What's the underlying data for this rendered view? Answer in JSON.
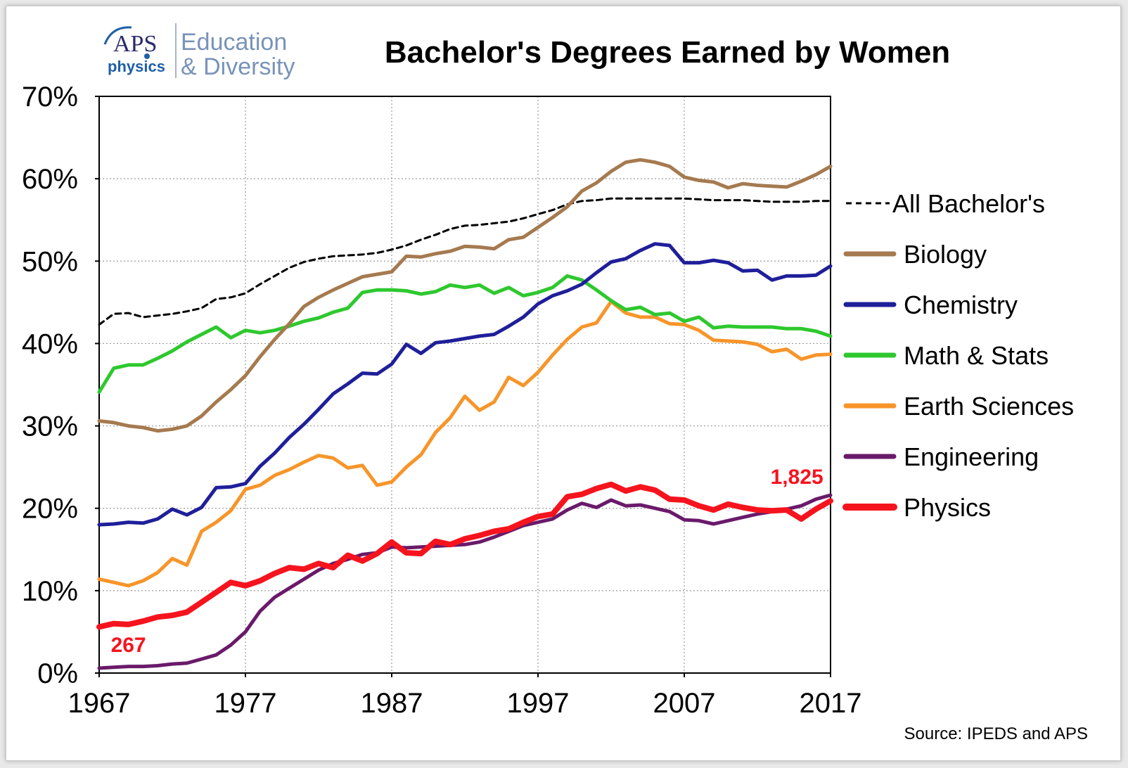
{
  "logo": {
    "aps": "APS",
    "physics": "physics",
    "line1": "Education",
    "line2": "& Diversity"
  },
  "source": "Source: IPEDS and APS",
  "chart_data": {
    "type": "line",
    "title": "Bachelor's Degrees Earned by Women",
    "xlabel": "",
    "ylabel": "",
    "xlim": [
      1967,
      2017
    ],
    "ylim": [
      0,
      70
    ],
    "x_ticks": [
      1967,
      1977,
      1987,
      1997,
      2007,
      2017
    ],
    "x_tick_labels": [
      "1967",
      "1977",
      "1987",
      "1997",
      "2007",
      "2017"
    ],
    "y_ticks": [
      0,
      10,
      20,
      30,
      40,
      50,
      60,
      70
    ],
    "y_tick_labels": [
      "0%",
      "10%",
      "20%",
      "30%",
      "40%",
      "50%",
      "60%",
      "70%"
    ],
    "grid": true,
    "legend_position": "right",
    "x": [
      1967,
      1968,
      1969,
      1970,
      1971,
      1972,
      1973,
      1974,
      1975,
      1976,
      1977,
      1978,
      1979,
      1980,
      1981,
      1982,
      1983,
      1984,
      1985,
      1986,
      1987,
      1988,
      1989,
      1990,
      1991,
      1992,
      1993,
      1994,
      1995,
      1996,
      1997,
      1998,
      1999,
      2000,
      2001,
      2002,
      2003,
      2004,
      2005,
      2006,
      2007,
      2008,
      2009,
      2010,
      2011,
      2012,
      2013,
      2014,
      2015,
      2016,
      2017
    ],
    "series": [
      {
        "name": "All Bachelor's",
        "color": "#000000",
        "dashed": true,
        "values": [
          42.3,
          43.6,
          43.7,
          43.2,
          43.4,
          43.6,
          43.9,
          44.3,
          45.4,
          45.6,
          46.1,
          47.2,
          48.2,
          49.2,
          49.9,
          50.3,
          50.6,
          50.7,
          50.8,
          51.0,
          51.4,
          51.9,
          52.6,
          53.2,
          53.9,
          54.3,
          54.4,
          54.6,
          54.8,
          55.2,
          55.7,
          56.2,
          56.9,
          57.3,
          57.4,
          57.6,
          57.6,
          57.6,
          57.6,
          57.6,
          57.6,
          57.5,
          57.4,
          57.4,
          57.4,
          57.3,
          57.2,
          57.2,
          57.2,
          57.3,
          57.3
        ]
      },
      {
        "name": "Biology",
        "color": "#a57a4f",
        "dashed": false,
        "values": [
          30.6,
          30.4,
          30.0,
          29.8,
          29.4,
          29.6,
          30.0,
          31.2,
          32.9,
          34.4,
          36.1,
          38.4,
          40.5,
          42.4,
          44.5,
          45.6,
          46.5,
          47.3,
          48.1,
          48.4,
          48.7,
          50.6,
          50.5,
          50.9,
          51.2,
          51.8,
          51.7,
          51.5,
          52.6,
          52.9,
          54.1,
          55.3,
          56.6,
          58.5,
          59.5,
          60.9,
          62.0,
          62.3,
          62.0,
          61.5,
          60.2,
          59.8,
          59.6,
          58.9,
          59.4,
          59.2,
          59.1,
          59.0,
          59.7,
          60.5,
          61.5
        ]
      },
      {
        "name": "Chemistry",
        "color": "#1f1f9a",
        "dashed": false,
        "values": [
          18.0,
          18.1,
          18.3,
          18.2,
          18.7,
          19.9,
          19.2,
          20.1,
          22.5,
          22.6,
          23.0,
          25.1,
          26.7,
          28.6,
          30.2,
          32.0,
          33.9,
          35.1,
          36.4,
          36.3,
          37.5,
          39.9,
          38.8,
          40.1,
          40.3,
          40.6,
          40.9,
          41.1,
          42.1,
          43.2,
          44.8,
          45.8,
          46.4,
          47.2,
          48.6,
          49.9,
          50.3,
          51.3,
          52.1,
          51.9,
          49.8,
          49.8,
          50.1,
          49.8,
          48.8,
          48.9,
          47.7,
          48.2,
          48.2,
          48.3,
          49.4
        ]
      },
      {
        "name": "Math & Stats",
        "color": "#2ec82e",
        "dashed": false,
        "values": [
          34.1,
          37.0,
          37.4,
          37.4,
          38.2,
          39.1,
          40.2,
          41.1,
          42.0,
          40.7,
          41.6,
          41.3,
          41.6,
          42.1,
          42.7,
          43.1,
          43.8,
          44.3,
          46.2,
          46.5,
          46.5,
          46.4,
          46.0,
          46.3,
          47.1,
          46.8,
          47.1,
          46.1,
          46.8,
          45.8,
          46.2,
          46.8,
          48.2,
          47.7,
          46.5,
          45.2,
          44.1,
          44.4,
          43.5,
          43.7,
          42.7,
          43.2,
          41.9,
          42.1,
          42.0,
          42.0,
          42.0,
          41.8,
          41.8,
          41.5,
          40.9
        ]
      },
      {
        "name": "Earth Sciences",
        "color": "#f7952a",
        "dashed": false,
        "values": [
          11.4,
          11.0,
          10.6,
          11.2,
          12.2,
          13.9,
          13.1,
          17.2,
          18.3,
          19.7,
          22.3,
          22.8,
          24.0,
          24.7,
          25.6,
          26.4,
          26.1,
          24.9,
          25.2,
          22.8,
          23.2,
          25.0,
          26.5,
          29.2,
          31.0,
          33.6,
          31.9,
          32.9,
          35.9,
          34.9,
          36.5,
          38.6,
          40.5,
          42.0,
          42.5,
          45.1,
          43.7,
          43.2,
          43.2,
          42.4,
          42.3,
          41.6,
          40.4,
          40.3,
          40.2,
          39.9,
          39.0,
          39.3,
          38.1,
          38.6,
          38.7
        ]
      },
      {
        "name": "Engineering",
        "color": "#6a1a6a",
        "dashed": false,
        "values": [
          0.6,
          0.7,
          0.8,
          0.8,
          0.9,
          1.1,
          1.2,
          1.7,
          2.2,
          3.4,
          5.0,
          7.5,
          9.2,
          10.3,
          11.4,
          12.5,
          13.3,
          13.8,
          14.4,
          14.6,
          15.3,
          15.2,
          15.3,
          15.4,
          15.5,
          15.6,
          15.9,
          16.5,
          17.2,
          17.9,
          18.3,
          18.7,
          19.8,
          20.6,
          20.1,
          21.0,
          20.3,
          20.4,
          20.0,
          19.6,
          18.6,
          18.5,
          18.1,
          18.5,
          18.9,
          19.3,
          19.6,
          19.9,
          20.3,
          21.1,
          21.6
        ]
      },
      {
        "name": "Physics",
        "color": "#f5141e",
        "dashed": false,
        "values": [
          5.6,
          6.0,
          5.9,
          6.3,
          6.8,
          7.0,
          7.4,
          8.6,
          9.8,
          11.0,
          10.6,
          11.2,
          12.1,
          12.8,
          12.6,
          13.3,
          12.8,
          14.3,
          13.6,
          14.5,
          15.9,
          14.6,
          14.5,
          16.0,
          15.6,
          16.3,
          16.7,
          17.2,
          17.5,
          18.3,
          19.0,
          19.3,
          21.4,
          21.7,
          22.4,
          22.9,
          22.1,
          22.6,
          22.2,
          21.1,
          21.0,
          20.3,
          19.8,
          20.5,
          20.1,
          19.8,
          19.7,
          19.8,
          18.7,
          19.9,
          20.9
        ]
      }
    ],
    "annotations": [
      {
        "text": "267",
        "color": "#f5141e",
        "x": 1969,
        "y": 3.6
      },
      {
        "text": "1,825",
        "color": "#f5141e",
        "x": 2014.7,
        "y": 24.0
      }
    ]
  }
}
